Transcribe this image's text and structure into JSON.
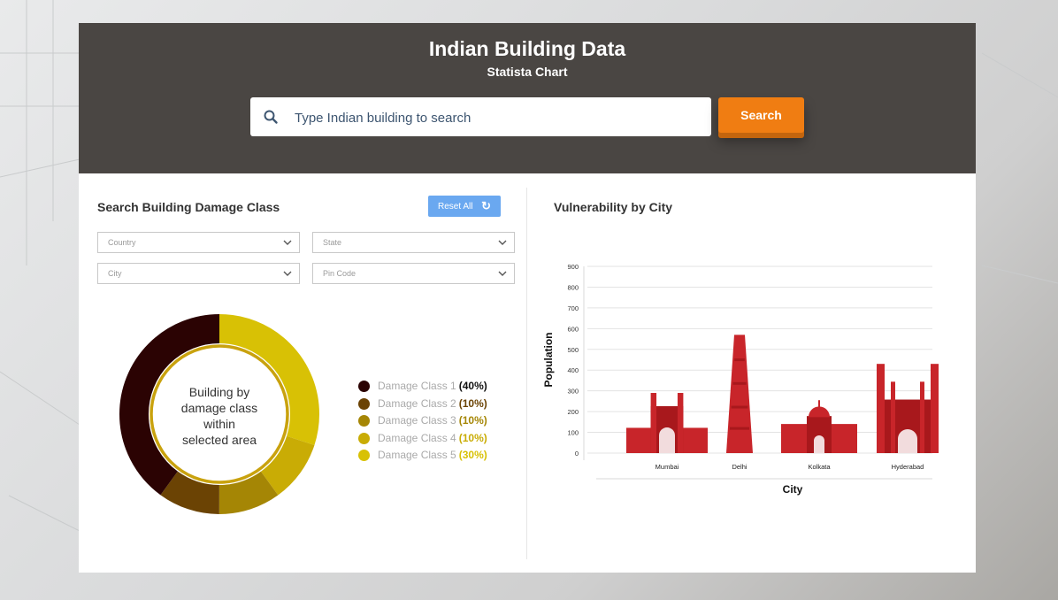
{
  "header": {
    "title": "Indian Building Data",
    "subtitle": "Statista Chart",
    "search": {
      "placeholder": "Type Indian building to search",
      "button_label": "Search"
    }
  },
  "left_panel": {
    "title": "Search Building Damage Class",
    "reset_label": "Reset All",
    "filters": {
      "country": "Country",
      "state": "State",
      "city": "City",
      "pin_code": "Pin Code"
    },
    "donut": {
      "center_lines": [
        "Building by",
        "damage  class",
        "within",
        "selected area"
      ],
      "classes": [
        {
          "label": "Damage Class 1",
          "percent_text": "(40%)",
          "percent": 40,
          "color": "#2b0303"
        },
        {
          "label": "Damage Class 2",
          "percent_text": "(10%)",
          "percent": 10,
          "color": "#6b4304"
        },
        {
          "label": "Damage Class 3",
          "percent_text": "(10%)",
          "percent": 10,
          "color": "#a58605"
        },
        {
          "label": "Damage Class 4",
          "percent_text": "(10%)",
          "percent": 10,
          "color": "#c9ac05"
        },
        {
          "label": "Damage Class 5",
          "percent_text": "(30%)",
          "percent": 30,
          "color": "#d8c105"
        }
      ]
    }
  },
  "right_panel": {
    "title": "Vulnerability by City"
  },
  "chart_data": {
    "type": "bar",
    "title": "Vulnerability by City",
    "xlabel": "City",
    "ylabel": "Population",
    "ylim": [
      0,
      900
    ],
    "yticks": [
      0,
      100,
      200,
      300,
      400,
      500,
      600,
      700,
      800,
      900
    ],
    "categories": [
      "Mumbai",
      "Delhi",
      "Kolkata",
      "Hyderabad"
    ],
    "values": [
      290,
      570,
      255,
      430
    ],
    "bar_color": "#c8252a",
    "grid": true
  }
}
